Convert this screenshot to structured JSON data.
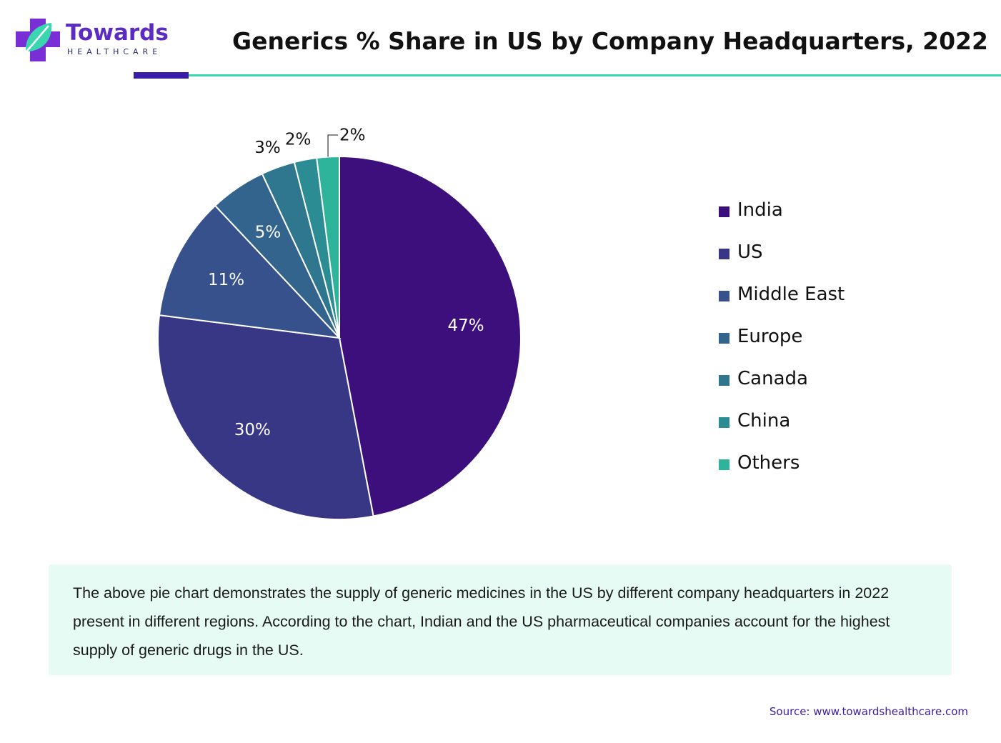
{
  "brand": {
    "name": "Towards",
    "tagline": "HEALTHCARE"
  },
  "title": "Generics % Share in US by Company Headquarters, 2022",
  "chart_data": {
    "type": "pie",
    "title": "Generics % Share in US by Company Headquarters, 2022",
    "categories": [
      "India",
      "US",
      "Middle East",
      "Europe",
      "Canada",
      "China",
      "Others"
    ],
    "values": [
      47,
      30,
      11,
      5,
      3,
      2,
      2
    ],
    "data_labels": [
      "47%",
      "30%",
      "11%",
      "5%",
      "3%",
      "2%",
      "2%"
    ],
    "colors": [
      "#3d0f7c",
      "#383786",
      "#36518c",
      "#33648e",
      "#2f768f",
      "#2c8c94",
      "#2db49b"
    ],
    "legend_position": "right",
    "start_angle": "top, clockwise"
  },
  "summary": "The above pie chart demonstrates the supply of generic medicines in the US by different company headquarters in 2022 present in different regions. According to the chart, Indian and the US pharmaceutical companies account for the highest supply of generic drugs in the US.",
  "source": "Source: www.towardshealthcare.com"
}
